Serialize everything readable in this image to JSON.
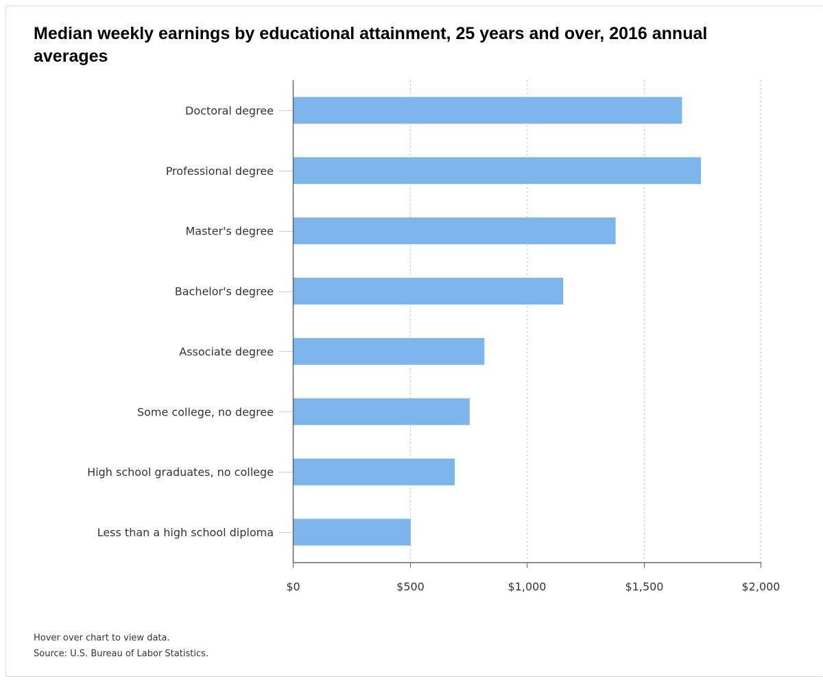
{
  "chart_data": {
    "type": "bar",
    "orientation": "horizontal",
    "title": "Median weekly earnings by educational attainment, 25 years and over, 2016 annual averages",
    "categories": [
      "Doctoral degree",
      "Professional degree",
      "Master's degree",
      "Bachelor's degree",
      "Associate degree",
      "Some college, no degree",
      "High school graduates, no college",
      "Less than a high school diploma"
    ],
    "values": [
      1664,
      1745,
      1380,
      1156,
      819,
      756,
      692,
      504
    ],
    "xlim": [
      0,
      2000
    ],
    "xticks": [
      0,
      500,
      1000,
      1500,
      2000
    ],
    "xtick_labels": [
      "$0",
      "$500",
      "$1,000",
      "$1,500",
      "$2,000"
    ],
    "grid": "vertical dotted",
    "bar_color": "#7cb4ec"
  },
  "footer": {
    "note": "Hover over chart to view data.",
    "source": "Source: U.S. Bureau of Labor Statistics."
  }
}
